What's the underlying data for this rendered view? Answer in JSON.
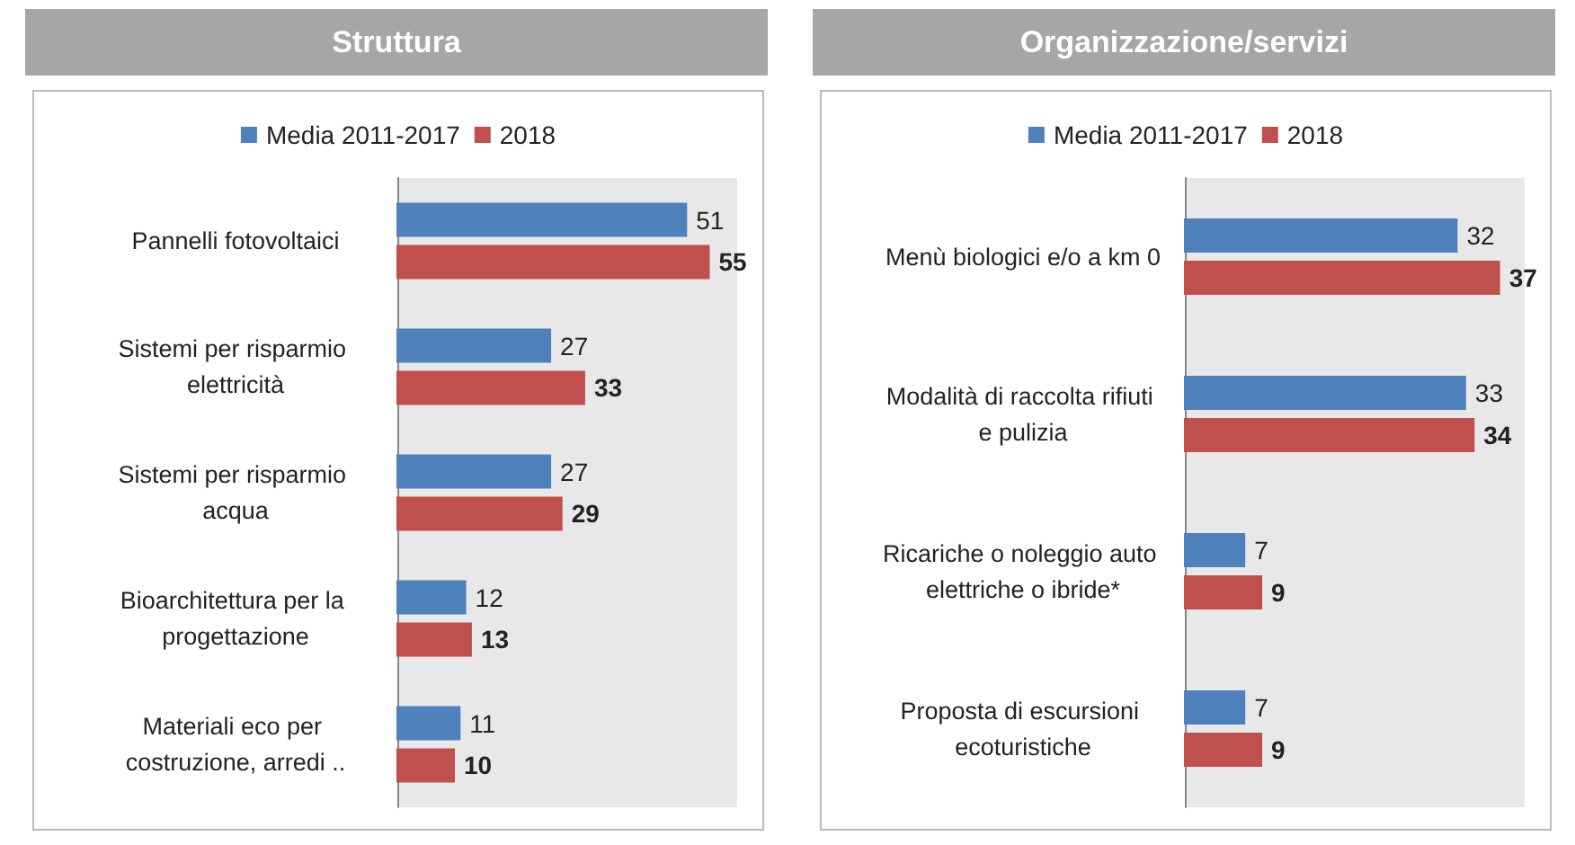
{
  "chart_data": [
    {
      "type": "bar",
      "title": "Struttura",
      "orientation": "horizontal",
      "categories": [
        "Pannelli fotovoltaici",
        "Sistemi per risparmio elettricità",
        "Sistemi per risparmio acqua",
        "Bioarchitettura per la progettazione",
        "Materiali eco per costruzione, arredi .."
      ],
      "series": [
        {
          "name": "Media 2011-2017",
          "color": "#4f81bd",
          "values": [
            51,
            27,
            27,
            12,
            11
          ]
        },
        {
          "name": "2018",
          "color": "#c0504d",
          "values": [
            55,
            33,
            29,
            13,
            10
          ]
        }
      ],
      "data_labels": true,
      "legend": "top",
      "grid": false,
      "tick_labels": "y"
    },
    {
      "type": "bar",
      "title": "Organizzazione/servizi",
      "orientation": "horizontal",
      "categories": [
        "Menù biologici e/o a km 0",
        "Modalità di raccolta rifiuti e pulizia",
        "Ricariche o noleggio auto elettriche o ibride*",
        "Proposta di escursioni ecoturistiche"
      ],
      "series": [
        {
          "name": "Media 2011-2017",
          "color": "#4f81bd",
          "values": [
            32,
            33,
            7,
            7
          ]
        },
        {
          "name": "2018",
          "color": "#c0504d",
          "values": [
            37,
            34,
            9,
            9
          ]
        }
      ],
      "data_labels": true,
      "legend": "top",
      "grid": false,
      "tick_labels": "y"
    }
  ]
}
